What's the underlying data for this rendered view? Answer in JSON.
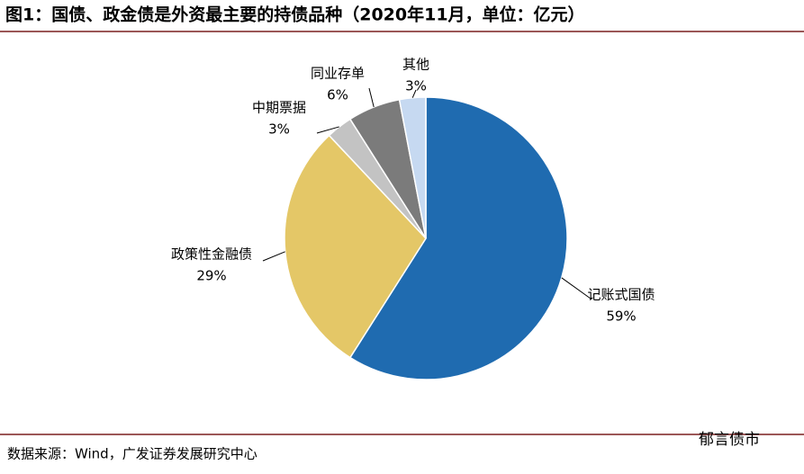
{
  "chart_data": {
    "type": "pie",
    "title": "图1：国债、政金债是外资最主要的持债品种（2020年11月，单位：亿元）",
    "categories": [
      "记账式国债",
      "政策性金融债",
      "中期票据",
      "同业存单",
      "其他"
    ],
    "values": [
      59,
      29,
      3,
      6,
      3
    ],
    "value_labels": [
      "59%",
      "29%",
      "3%",
      "6%",
      "3%"
    ],
    "colors": [
      "#1f6bb0",
      "#e4c767",
      "#c3c3c3",
      "#7b7b7b",
      "#c6d9f1"
    ],
    "source": "数据来源：Wind，广发证券发展研究中心",
    "watermark": "郁言债市"
  }
}
